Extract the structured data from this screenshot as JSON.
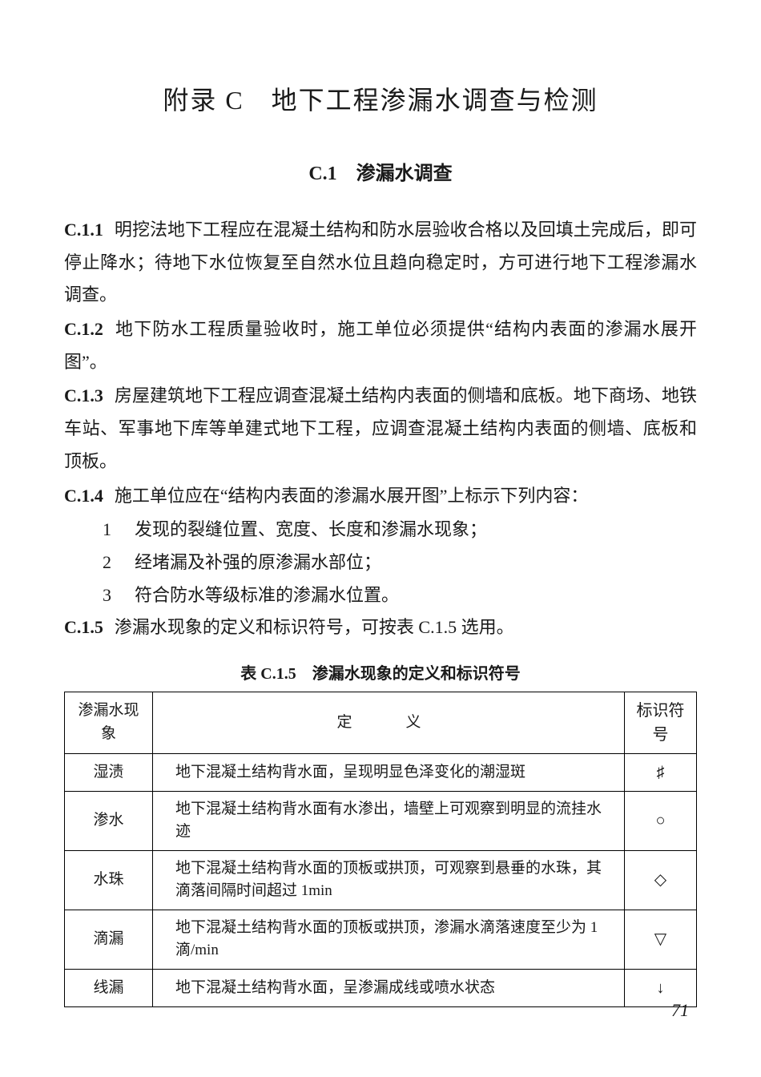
{
  "title": "附录 C　地下工程渗漏水调查与检测",
  "section": "C.1　渗漏水调查",
  "clauses": {
    "c11": {
      "num": "C.1.1",
      "text": "明挖法地下工程应在混凝土结构和防水层验收合格以及回填土完成后，即可停止降水；待地下水位恢复至自然水位且趋向稳定时，方可进行地下工程渗漏水调查。"
    },
    "c12": {
      "num": "C.1.2",
      "text": "地下防水工程质量验收时，施工单位必须提供“结构内表面的渗漏水展开图”。"
    },
    "c13": {
      "num": "C.1.3",
      "text": "房屋建筑地下工程应调查混凝土结构内表面的侧墙和底板。地下商场、地铁车站、军事地下库等单建式地下工程，应调查混凝土结构内表面的侧墙、底板和顶板。"
    },
    "c14": {
      "num": "C.1.4",
      "text": "施工单位应在“结构内表面的渗漏水展开图”上标示下列内容："
    },
    "c15": {
      "num": "C.1.5",
      "text": "渗漏水现象的定义和标识符号，可按表 C.1.5 选用。"
    }
  },
  "list": {
    "i1": {
      "num": "1",
      "text": "发现的裂缝位置、宽度、长度和渗漏水现象；"
    },
    "i2": {
      "num": "2",
      "text": "经堵漏及补强的原渗漏水部位；"
    },
    "i3": {
      "num": "3",
      "text": "符合防水等级标准的渗漏水位置。"
    }
  },
  "table": {
    "caption": "表 C.1.5　渗漏水现象的定义和标识符号",
    "headers": {
      "phenom": "渗漏水现象",
      "def": "定　义",
      "sym": "标识符号"
    },
    "rows": {
      "r1": {
        "phenom": "湿渍",
        "def": "地下混凝土结构背水面，呈现明显色泽变化的潮湿斑",
        "sym": "♯"
      },
      "r2": {
        "phenom": "渗水",
        "def": "地下混凝土结构背水面有水渗出，墙壁上可观察到明显的流挂水迹",
        "sym": "○"
      },
      "r3": {
        "phenom": "水珠",
        "def": "地下混凝土结构背水面的顶板或拱顶，可观察到悬垂的水珠，其滴落间隔时间超过 1min",
        "sym": "◇"
      },
      "r4": {
        "phenom": "滴漏",
        "def": "地下混凝土结构背水面的顶板或拱顶，渗漏水滴落速度至少为 1 滴/min",
        "sym": "▽"
      },
      "r5": {
        "phenom": "线漏",
        "def": "地下混凝土结构背水面，呈渗漏成线或喷水状态",
        "sym": "↓"
      }
    }
  },
  "pageNumber": "71"
}
